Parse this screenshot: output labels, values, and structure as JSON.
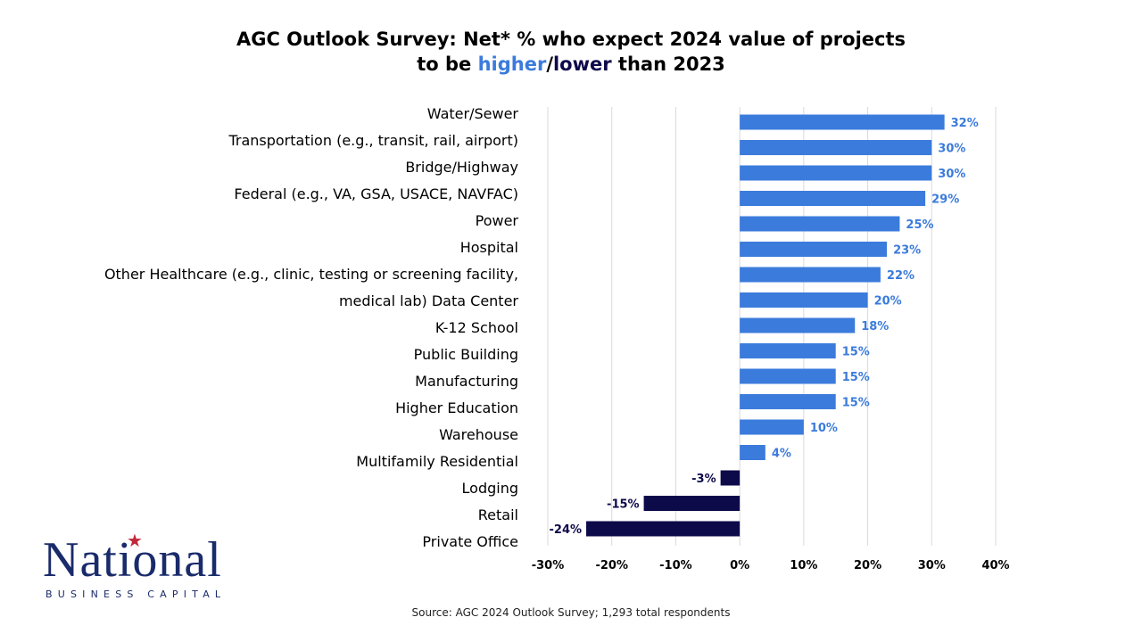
{
  "title": {
    "line1": "AGC Outlook Survey: Net* % who expect 2024 value of projects",
    "line2_prefix": "to be ",
    "higher": "higher",
    "slash": "/",
    "lower": "lower",
    "line2_suffix": " than 2023"
  },
  "category_labels": [
    "Water/Sewer",
    "Transportation (e.g., transit, rail, airport)",
    "Bridge/Highway",
    "Federal (e.g., VA, GSA, USACE, NAVFAC)",
    "Power",
    "Hospital",
    "Other Healthcare (e.g., clinic, testing or screening facility,",
    "medical lab) Data Center",
    "K-12 School",
    "Public Building",
    "Manufacturing",
    "Higher Education",
    "Warehouse",
    "Multifamily Residential",
    "Lodging",
    "Retail",
    "Private Office"
  ],
  "chart_data": {
    "type": "bar",
    "orientation": "horizontal",
    "values": [
      32,
      30,
      30,
      29,
      25,
      23,
      22,
      20,
      18,
      15,
      15,
      15,
      10,
      4,
      -3,
      -15,
      -24
    ],
    "data_labels": [
      "32%",
      "30%",
      "30%",
      "29%",
      "25%",
      "23%",
      "22%",
      "20%",
      "18%",
      "15%",
      "15%",
      "15%",
      "10%",
      "4%",
      "-3%",
      "-15%",
      "-24%"
    ],
    "xlim": [
      -30,
      40
    ],
    "x_ticks": [
      -30,
      -20,
      -10,
      0,
      10,
      20,
      30,
      40
    ],
    "x_tick_labels": [
      "-30%",
      "-20%",
      "-10%",
      "0%",
      "10%",
      "20%",
      "30%",
      "40%"
    ],
    "grid": true,
    "legend": "none"
  },
  "colors": {
    "positive": "#3b7bdc",
    "negative": "#0d0a4a",
    "grid": "#d9d9d9"
  },
  "source": "Source: AGC 2024 Outlook Survey; 1,293 total respondents",
  "logo": {
    "word": "National",
    "sub": "BUSINESS CAPITAL"
  }
}
